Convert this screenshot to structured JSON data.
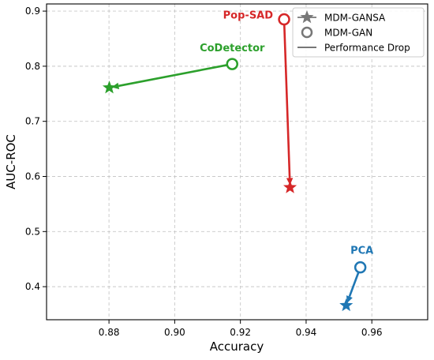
{
  "chart_data": {
    "type": "scatter",
    "title": "",
    "xlabel": "Accuracy",
    "ylabel": "AUC-ROC",
    "xlim": [
      0.861,
      0.977
    ],
    "ylim": [
      0.34,
      0.913
    ],
    "xticks": [
      0.88,
      0.9,
      0.92,
      0.94,
      0.96
    ],
    "xtick_labels": [
      "0.88",
      "0.90",
      "0.92",
      "0.94",
      "0.96"
    ],
    "yticks": [
      0.4,
      0.5,
      0.6,
      0.7,
      0.8,
      0.9
    ],
    "ytick_labels": [
      "0.4",
      "0.5",
      "0.6",
      "0.7",
      "0.8",
      "0.9"
    ],
    "grid": true,
    "legend_position": "top-right",
    "legend": [
      {
        "label": "MDM-GANSA",
        "marker": "star"
      },
      {
        "label": "MDM-GAN",
        "marker": "circle"
      },
      {
        "label": "Performance Drop",
        "marker": "line"
      }
    ],
    "series": [
      {
        "name": "CoDetector",
        "color": "#2ca02c",
        "gan": {
          "x": 0.9175,
          "y": 0.804
        },
        "gansa": {
          "x": 0.8801,
          "y": 0.761
        }
      },
      {
        "name": "Pop-SAD",
        "color": "#d62728",
        "gan": {
          "x": 0.9333,
          "y": 0.885
        },
        "gansa": {
          "x": 0.9351,
          "y": 0.58
        }
      },
      {
        "name": "PCA",
        "color": "#1f77b4",
        "gan": {
          "x": 0.9565,
          "y": 0.435
        },
        "gansa": {
          "x": 0.9522,
          "y": 0.366
        }
      }
    ]
  }
}
